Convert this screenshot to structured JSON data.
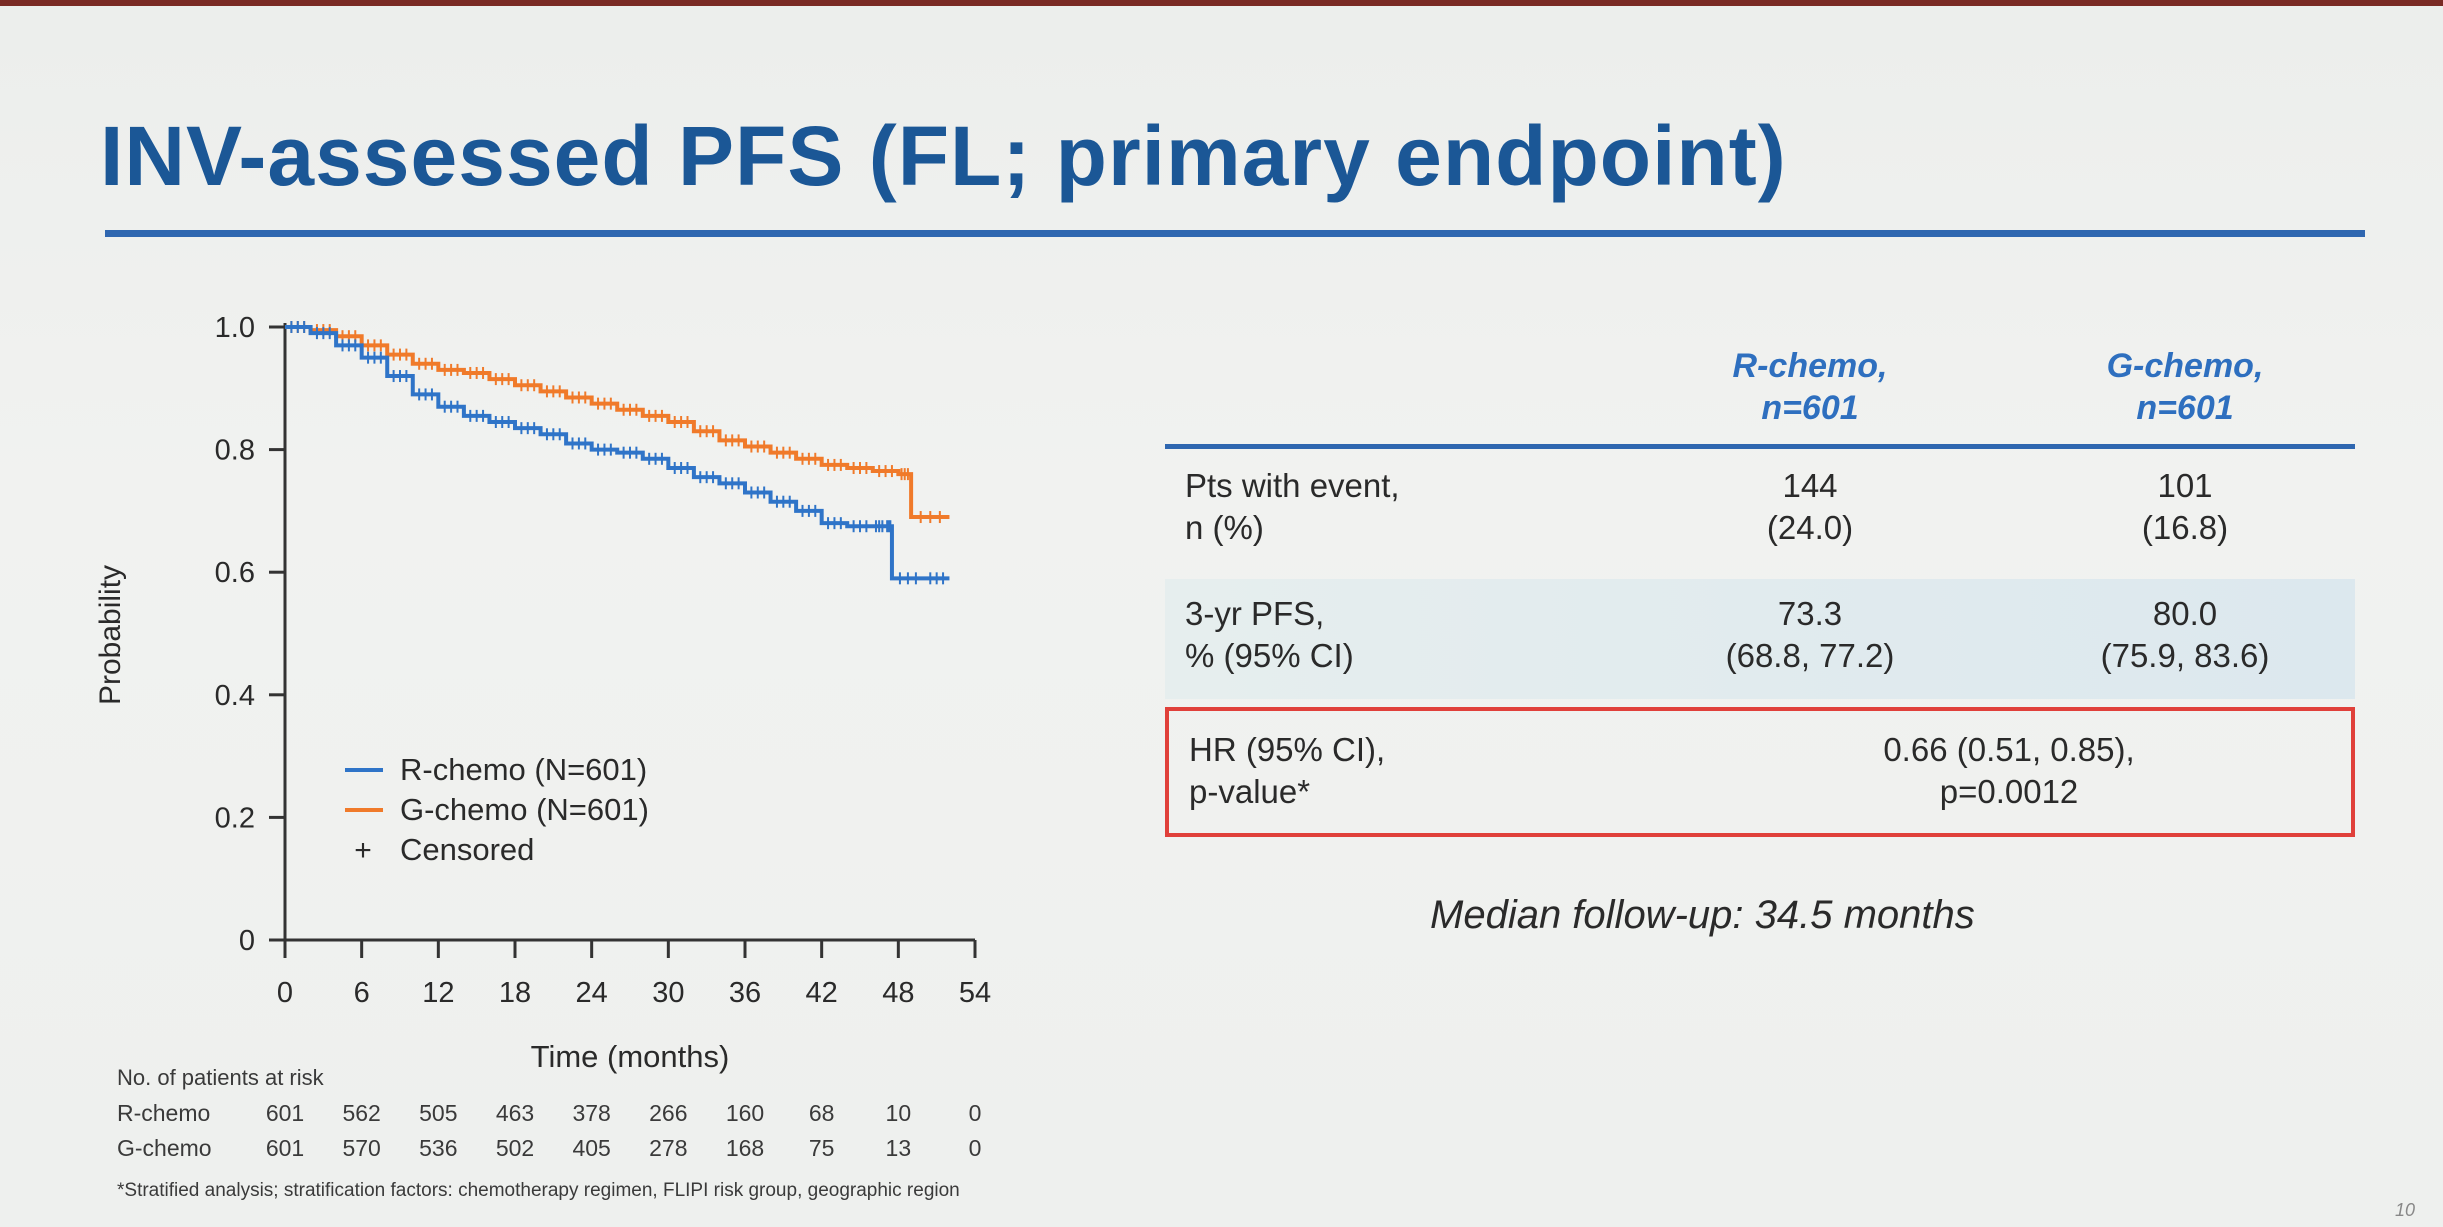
{
  "slide": {
    "title": "INV-assessed PFS (FL; primary endpoint)",
    "page_number": "10",
    "footnote": "*Stratified analysis; stratification factors: chemotherapy regimen, FLIPI risk group, geographic region",
    "median_followup": "Median follow-up: 34.5 months"
  },
  "colors": {
    "title": "#1b5796",
    "r_chemo": "#2f74c8",
    "g_chemo": "#f07a2a",
    "highlight_border": "#e0403a"
  },
  "chart_data": {
    "type": "line",
    "ylabel": "Probability",
    "xlabel": "Time (months)",
    "xlim": [
      0,
      54
    ],
    "ylim": [
      0,
      1.0
    ],
    "x_ticks": [
      0,
      6,
      12,
      18,
      24,
      30,
      36,
      42,
      48,
      54
    ],
    "y_ticks": [
      0,
      0.2,
      0.4,
      0.6,
      0.8,
      1.0
    ],
    "y_tick_labels": [
      "0",
      "0.2",
      "0.4",
      "0.6",
      "0.8",
      "1.0"
    ],
    "legend": {
      "position": "lower-left",
      "entries": [
        "R-chemo (N=601)",
        "G-chemo (N=601)",
        "Censored"
      ],
      "censored_symbol": "+"
    },
    "series": [
      {
        "name": "R-chemo (N=601)",
        "color": "#2f74c8",
        "x": [
          0,
          2,
          4,
          6,
          8,
          10,
          12,
          14,
          16,
          18,
          20,
          22,
          24,
          26,
          28,
          30,
          32,
          34,
          36,
          38,
          40,
          42,
          44,
          46,
          47,
          47.5,
          50,
          52
        ],
        "y": [
          1.0,
          0.99,
          0.97,
          0.95,
          0.92,
          0.89,
          0.87,
          0.855,
          0.845,
          0.835,
          0.825,
          0.81,
          0.8,
          0.795,
          0.785,
          0.77,
          0.755,
          0.745,
          0.73,
          0.715,
          0.7,
          0.68,
          0.675,
          0.675,
          0.675,
          0.59,
          0.59,
          0.59
        ]
      },
      {
        "name": "G-chemo (N=601)",
        "color": "#f07a2a",
        "x": [
          0,
          2,
          4,
          6,
          8,
          10,
          12,
          14,
          16,
          18,
          20,
          22,
          24,
          26,
          28,
          30,
          32,
          34,
          36,
          38,
          40,
          42,
          44,
          46,
          48,
          49,
          52
        ],
        "y": [
          1.0,
          0.995,
          0.985,
          0.97,
          0.955,
          0.94,
          0.93,
          0.925,
          0.915,
          0.905,
          0.895,
          0.885,
          0.875,
          0.865,
          0.855,
          0.845,
          0.83,
          0.815,
          0.805,
          0.795,
          0.785,
          0.775,
          0.77,
          0.765,
          0.76,
          0.69,
          0.69
        ]
      }
    ],
    "at_risk": {
      "title": "No. of patients at risk",
      "rows": [
        {
          "label": "R-chemo",
          "values": [
            "601",
            "562",
            "505",
            "463",
            "378",
            "266",
            "160",
            "68",
            "10",
            "0"
          ]
        },
        {
          "label": "G-chemo",
          "values": [
            "601",
            "570",
            "536",
            "502",
            "405",
            "278",
            "168",
            "75",
            "13",
            "0"
          ]
        }
      ]
    }
  },
  "table": {
    "headers": [
      {
        "line1": "R-chemo,",
        "line2": "n=601"
      },
      {
        "line1": "G-chemo,",
        "line2": "n=601"
      }
    ],
    "rows": [
      {
        "label_line1": "Pts with event,",
        "label_line2": "n (%)",
        "r_line1": "144",
        "r_line2": "(24.0)",
        "g_line1": "101",
        "g_line2": "(16.8)"
      },
      {
        "label_line1": "3-yr PFS,",
        "label_line2": "% (95% CI)",
        "r_line1": "73.3",
        "r_line2": "(68.8, 77.2)",
        "g_line1": "80.0",
        "g_line2": "(75.9, 83.6)"
      }
    ],
    "hr_row": {
      "label_line1": "HR (95% CI),",
      "label_line2": "p-value*",
      "value_line1": "0.66 (0.51, 0.85),",
      "value_line2": "p=0.0012"
    }
  }
}
